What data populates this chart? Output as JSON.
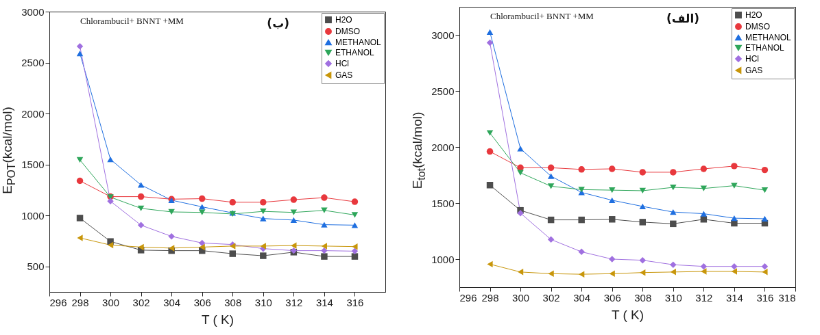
{
  "chart_data": [
    {
      "type": "line",
      "x": [
        298,
        300,
        302,
        304,
        306,
        308,
        310,
        312,
        314,
        316
      ],
      "xlim": [
        296,
        318
      ],
      "xticks": [
        296,
        298,
        300,
        302,
        304,
        306,
        308,
        310,
        312,
        314,
        316
      ],
      "ylim": [
        250,
        3000
      ],
      "yticks": [
        500,
        1000,
        1500,
        2000,
        2500,
        3000
      ],
      "xlabel": "T ( K)",
      "ylabel": "E$_{POT}$(kcal/mol)",
      "legend": "top right",
      "annotations": [
        "Chlorambucil+   BNNT +MM",
        "(ب)"
      ],
      "series": [
        {
          "name": "H2O",
          "color": "#4d4d4d",
          "marker": "square",
          "values": [
            975,
            745,
            660,
            655,
            655,
            625,
            605,
            640,
            598,
            598
          ]
        },
        {
          "name": "DMSO",
          "color": "#e8383d",
          "marker": "circle",
          "values": [
            1340,
            1185,
            1185,
            1160,
            1165,
            1130,
            1130,
            1155,
            1175,
            1135
          ]
        },
        {
          "name": "METHANOL",
          "color": "#1f6fe0",
          "marker": "triangle",
          "values": [
            2590,
            1550,
            1300,
            1150,
            1085,
            1025,
            970,
            955,
            910,
            905
          ]
        },
        {
          "name": "ETHANOL",
          "color": "#2ea65a",
          "marker": "triangle-down",
          "values": [
            1545,
            1180,
            1070,
            1035,
            1030,
            1015,
            1040,
            1030,
            1050,
            1005
          ]
        },
        {
          "name": "HCl",
          "color": "#a070e0",
          "marker": "diamond",
          "values": [
            2660,
            1140,
            905,
            795,
            730,
            715,
            675,
            655,
            655,
            650
          ]
        },
        {
          "name": "GAS",
          "color": "#c8960a",
          "marker": "triangle-left",
          "values": [
            780,
            710,
            690,
            680,
            690,
            700,
            700,
            705,
            700,
            695
          ]
        }
      ]
    },
    {
      "type": "line",
      "x": [
        298,
        300,
        302,
        304,
        306,
        308,
        310,
        312,
        314,
        316
      ],
      "xlim": [
        296,
        318
      ],
      "xticks": [
        296,
        298,
        300,
        302,
        304,
        306,
        308,
        310,
        312,
        314,
        316,
        318
      ],
      "ylim": [
        750,
        3250
      ],
      "yticks": [
        1000,
        1500,
        2000,
        2500,
        3000
      ],
      "xlabel": "T ( K)",
      "ylabel": "E$_{tot}$(kcal/mol)",
      "legend": "top right",
      "annotations": [
        "Chlorambucil+   BNNT +MM",
        "(الف)"
      ],
      "series": [
        {
          "name": "H2O",
          "color": "#4d4d4d",
          "marker": "square",
          "values": [
            1660,
            1435,
            1350,
            1350,
            1355,
            1330,
            1315,
            1355,
            1320,
            1320
          ]
        },
        {
          "name": "DMSO",
          "color": "#e8383d",
          "marker": "circle",
          "values": [
            1960,
            1815,
            1815,
            1800,
            1805,
            1775,
            1775,
            1805,
            1830,
            1795
          ]
        },
        {
          "name": "METHANOL",
          "color": "#1f6fe0",
          "marker": "triangle",
          "values": [
            3025,
            1985,
            1740,
            1595,
            1525,
            1470,
            1420,
            1405,
            1365,
            1360
          ]
        },
        {
          "name": "ETHANOL",
          "color": "#2ea65a",
          "marker": "triangle-down",
          "values": [
            2125,
            1770,
            1650,
            1620,
            1615,
            1610,
            1640,
            1630,
            1655,
            1615
          ]
        },
        {
          "name": "HCl",
          "color": "#a070e0",
          "marker": "diamond",
          "values": [
            2930,
            1410,
            1175,
            1065,
            1000,
            990,
            950,
            935,
            935,
            935
          ]
        },
        {
          "name": "GAS",
          "color": "#c8960a",
          "marker": "triangle-left",
          "values": [
            955,
            885,
            870,
            865,
            870,
            880,
            885,
            890,
            890,
            885
          ]
        }
      ]
    }
  ]
}
